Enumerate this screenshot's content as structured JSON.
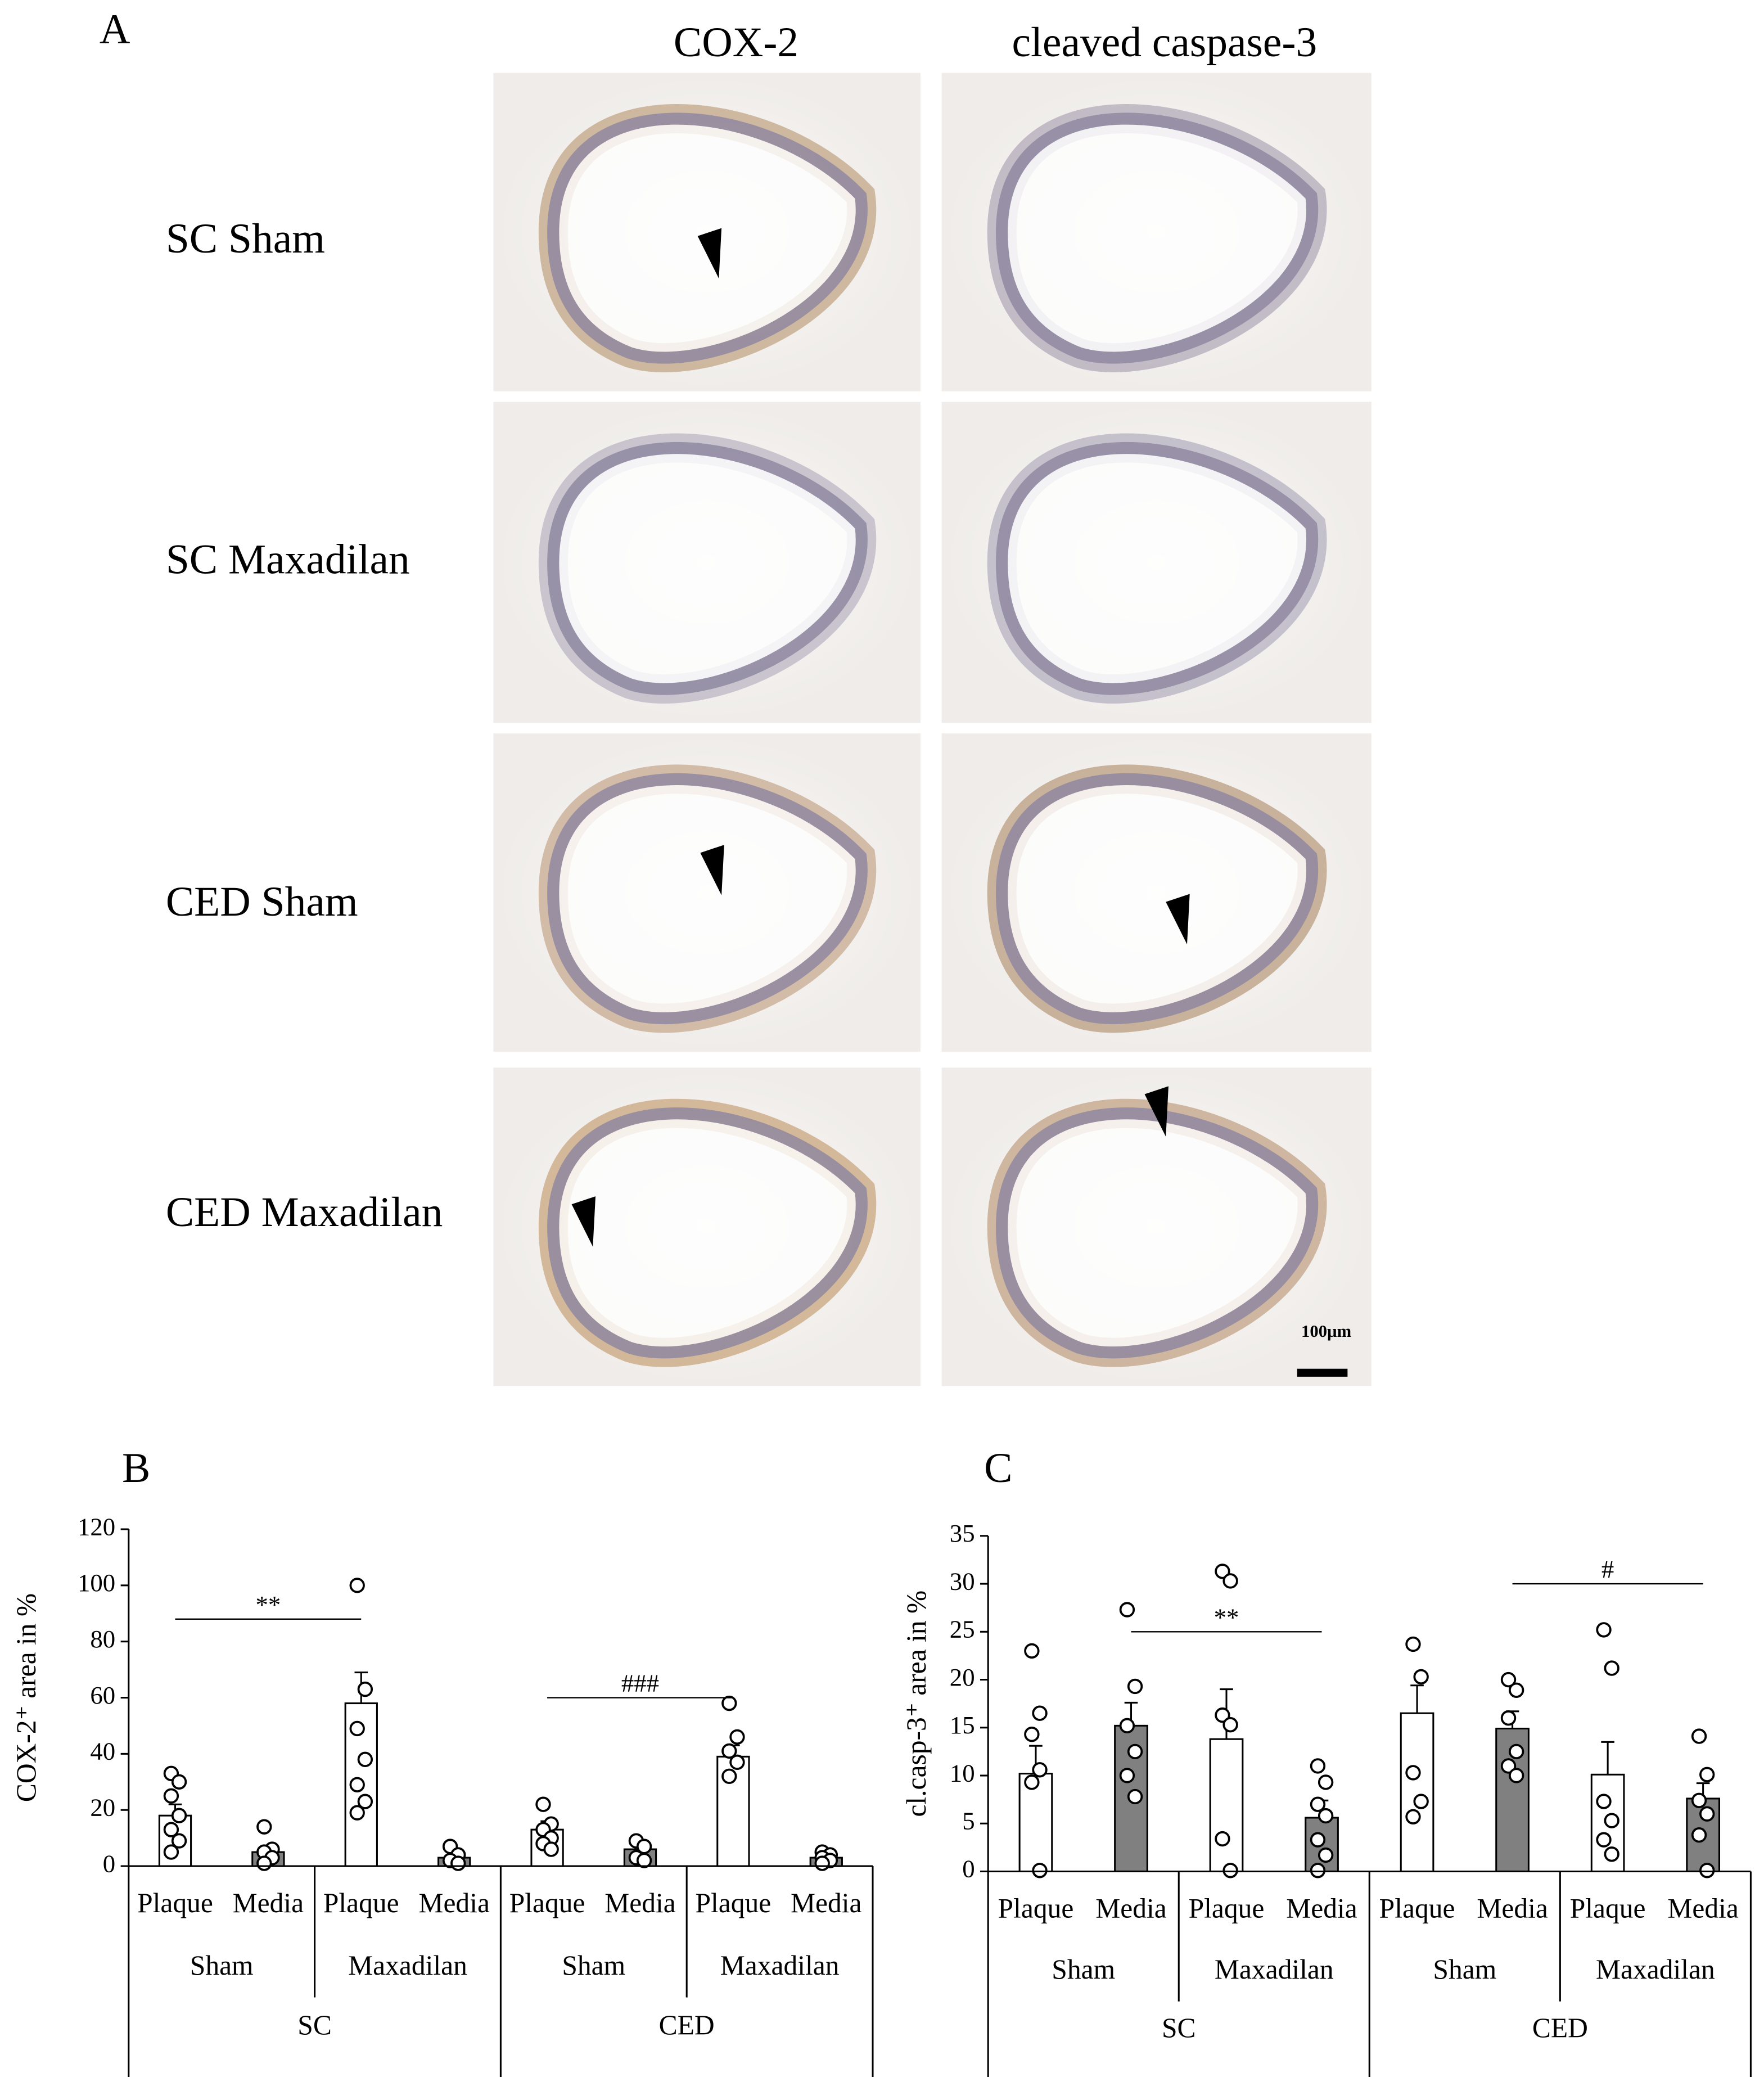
{
  "panel_a": {
    "label": "A",
    "columns": [
      "COX-2",
      "cleaved caspase-3"
    ],
    "rows": [
      "SC Sham",
      "SC Maxadilan",
      "CED Sham",
      "CED Maxadilan"
    ],
    "scale_bar": "100µm"
  },
  "chart_data": [
    {
      "type": "bar",
      "panel": "B",
      "y_label": "COX-2⁺ area in %",
      "categories": [
        "Plaque",
        "Media",
        "Plaque",
        "Media",
        "Plaque",
        "Media",
        "Plaque",
        "Media"
      ],
      "groups": [
        "Sham",
        "Maxadilan",
        "Sham",
        "Maxadilan"
      ],
      "supergroups": [
        "SC",
        "CED"
      ],
      "values": [
        18,
        5,
        58,
        3,
        13,
        6,
        39,
        3
      ],
      "errors": [
        4,
        1.5,
        11,
        1,
        3,
        2,
        4,
        1
      ],
      "colors": [
        "#ffffff",
        "#808080",
        "#ffffff",
        "#808080",
        "#ffffff",
        "#808080",
        "#ffffff",
        "#808080"
      ],
      "points": [
        [
          33,
          30,
          25,
          18,
          13,
          9,
          5
        ],
        [
          14,
          6,
          5,
          3,
          1
        ],
        [
          100,
          63,
          49,
          38,
          29,
          23,
          19
        ],
        [
          7,
          4,
          2,
          1
        ],
        [
          22,
          15,
          13,
          10,
          8,
          6
        ],
        [
          9,
          7,
          3,
          2
        ],
        [
          58,
          46,
          41,
          37,
          32
        ],
        [
          5,
          4,
          3,
          2,
          1
        ]
      ],
      "ylim": [
        0,
        120
      ],
      "yticks": [
        0,
        20,
        40,
        60,
        80,
        100,
        120
      ],
      "annotations": [
        "**",
        "###"
      ]
    },
    {
      "type": "bar",
      "panel": "C",
      "y_label": "cl.casp-3⁺ area in %",
      "categories": [
        "Plaque",
        "Media",
        "Plaque",
        "Media",
        "Plaque",
        "Media",
        "Plaque",
        "Media"
      ],
      "groups": [
        "Sham",
        "Maxadilan",
        "Sham",
        "Maxadilan"
      ],
      "supergroups": [
        "SC",
        "CED"
      ],
      "values": [
        10.2,
        15.2,
        13.8,
        5.6,
        16.5,
        14.9,
        10.1,
        7.6
      ],
      "errors": [
        2.9,
        2.4,
        5.2,
        1.8,
        2.9,
        1.8,
        3.4,
        1.6
      ],
      "colors": [
        "#ffffff",
        "#808080",
        "#ffffff",
        "#808080",
        "#ffffff",
        "#808080",
        "#ffffff",
        "#808080"
      ],
      "points": [
        [
          23,
          16.5,
          14.3,
          10.6,
          9.3,
          0.1
        ],
        [
          27.3,
          19.3,
          15.2,
          12.5,
          10,
          7.8
        ],
        [
          31.3,
          30.3,
          16.3,
          15.3,
          3.4,
          0.1
        ],
        [
          11,
          9.3,
          7,
          5.8,
          3.3,
          1.7,
          0.1
        ],
        [
          23.7,
          20.3,
          10.3,
          7.3,
          5.7
        ],
        [
          20,
          18.9,
          16,
          12.5,
          11,
          10
        ],
        [
          25.2,
          21.2,
          7.3,
          5.3,
          3.3,
          1.8
        ],
        [
          14.1,
          10.1,
          7.4,
          6,
          3.8,
          0.1
        ]
      ],
      "ylim": [
        0,
        35
      ],
      "yticks": [
        0,
        5,
        10,
        15,
        20,
        25,
        30,
        35
      ],
      "annotations": [
        "**",
        "#"
      ]
    }
  ]
}
